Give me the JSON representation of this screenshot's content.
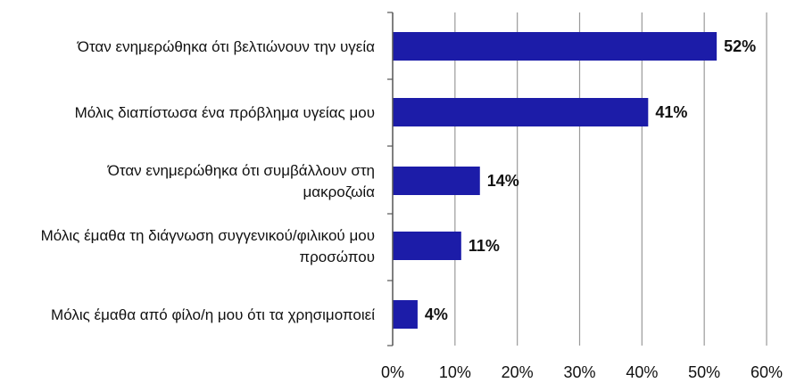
{
  "chart_data": {
    "type": "bar",
    "orientation": "horizontal",
    "categories": [
      [
        "Όταν ενημερώθηκα ότι βελτιώνουν την υγεία"
      ],
      [
        "Μόλις διαπίστωσα  ένα πρόβλημα υγείας μου"
      ],
      [
        "Όταν ενημερώθηκα ότι συμβάλλουν στη",
        "μακροζωία"
      ],
      [
        "Μόλις έμαθα τη διάγνωση συγγενικού/φιλικού μου",
        "προσώπου"
      ],
      [
        "Μόλις έμαθα από φίλο/η μου ότι τα χρησιμοποιεί"
      ]
    ],
    "values": [
      52,
      41,
      14,
      11,
      4
    ],
    "data_labels": [
      "52%",
      "41%",
      "14%",
      "11%",
      "4%"
    ],
    "xlim": [
      0,
      60
    ],
    "x_ticks": [
      0,
      10,
      20,
      30,
      40,
      50,
      60
    ],
    "x_tick_labels": [
      "0%",
      "10%",
      "20%",
      "30%",
      "40%",
      "50%",
      "60%"
    ],
    "grid": "vertical",
    "colors": {
      "bar": "#1c1ca8",
      "grid": "#9a9a9a",
      "axis": "#555555"
    }
  }
}
